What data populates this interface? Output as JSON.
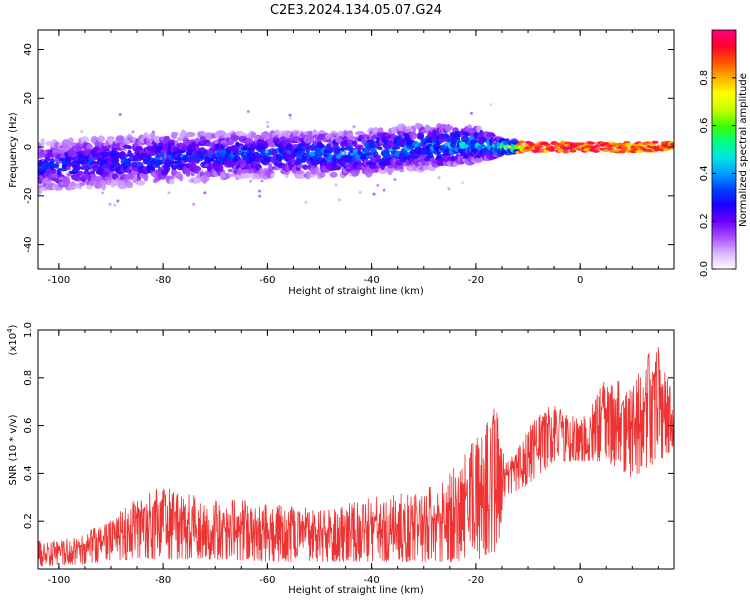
{
  "figure": {
    "title": "C2E3.2024.134.05.07.G24"
  },
  "colorbar": {
    "label": "Normalized spectral amplitude",
    "ticks": [
      "0.0",
      "0.2",
      "0.4",
      "0.6",
      "0.8"
    ],
    "colors": [
      "#ffffff",
      "#d9b3ff",
      "#a64dff",
      "#6a00ff",
      "#1a00ff",
      "#0040ff",
      "#00a0ff",
      "#00e5e5",
      "#00ff80",
      "#40ff00",
      "#c8ff00",
      "#ffff00",
      "#ffb000",
      "#ff5000",
      "#ff0030",
      "#ff0080"
    ]
  },
  "chart_data": [
    {
      "type": "heatmap",
      "name": "spectrogram",
      "xlabel": "Height of straight line (km)",
      "ylabel": "Frequency (Hz)",
      "xlim": [
        -104,
        18
      ],
      "ylim": [
        -50,
        48
      ],
      "xticks": [
        "-100",
        "-80",
        "-60",
        "-40",
        "-20",
        "0"
      ],
      "yticks": [
        "40",
        "20",
        "0",
        "-20",
        "-40"
      ],
      "xtick_values": [
        -100,
        -80,
        -60,
        -40,
        -20,
        0
      ],
      "ytick_values": [
        40,
        20,
        0,
        -20,
        -40
      ],
      "trend": {
        "x": [
          -104,
          -90,
          -75,
          -60,
          -45,
          -30,
          -20,
          -15,
          -10,
          0,
          10,
          18
        ],
        "center_freq": [
          -8,
          -6,
          -4,
          -3,
          -3,
          0,
          1,
          0,
          0,
          0,
          0,
          0
        ],
        "spread": [
          10,
          10,
          10,
          9,
          9,
          9,
          7,
          3,
          2,
          2,
          2,
          2
        ],
        "peak_amplitude": [
          0.3,
          0.35,
          0.35,
          0.35,
          0.4,
          0.4,
          0.5,
          0.6,
          0.95,
          0.95,
          0.95,
          0.95
        ]
      },
      "value_range": [
        0.0,
        1.0
      ]
    },
    {
      "type": "line",
      "name": "snr",
      "xlabel": "Height of straight line (km)",
      "ylabel": "SNR (10 * v/v)",
      "exponent_label": "(x10",
      "exponent_sup": "4",
      "exponent_close": ")",
      "xlim": [
        -104,
        18
      ],
      "ylim": [
        0.0,
        1.0
      ],
      "xticks": [
        "-100",
        "-80",
        "-60",
        "-40",
        "-20",
        "0"
      ],
      "yticks": [
        "0.2",
        "0.4",
        "0.6",
        "0.8",
        "1.0"
      ],
      "xtick_values": [
        -100,
        -80,
        -60,
        -40,
        -20,
        0
      ],
      "ytick_values": [
        0.2,
        0.4,
        0.6,
        0.8,
        1.0
      ],
      "color": "#ee3333",
      "envelope": {
        "x": [
          -104,
          -95,
          -90,
          -85,
          -80,
          -70,
          -60,
          -50,
          -40,
          -30,
          -25,
          -20,
          -16,
          -14.5,
          -12,
          -10,
          -5,
          0,
          5,
          10,
          15,
          18
        ],
        "low": [
          0.01,
          0.02,
          0.03,
          0.04,
          0.04,
          0.04,
          0.03,
          0.03,
          0.03,
          0.03,
          0.03,
          0.04,
          0.05,
          0.3,
          0.33,
          0.35,
          0.45,
          0.45,
          0.45,
          0.38,
          0.45,
          0.5
        ],
        "high": [
          0.12,
          0.15,
          0.22,
          0.3,
          0.35,
          0.3,
          0.28,
          0.25,
          0.3,
          0.33,
          0.4,
          0.55,
          0.7,
          0.45,
          0.5,
          0.6,
          0.7,
          0.62,
          0.8,
          0.78,
          0.98,
          0.7
        ]
      }
    }
  ]
}
